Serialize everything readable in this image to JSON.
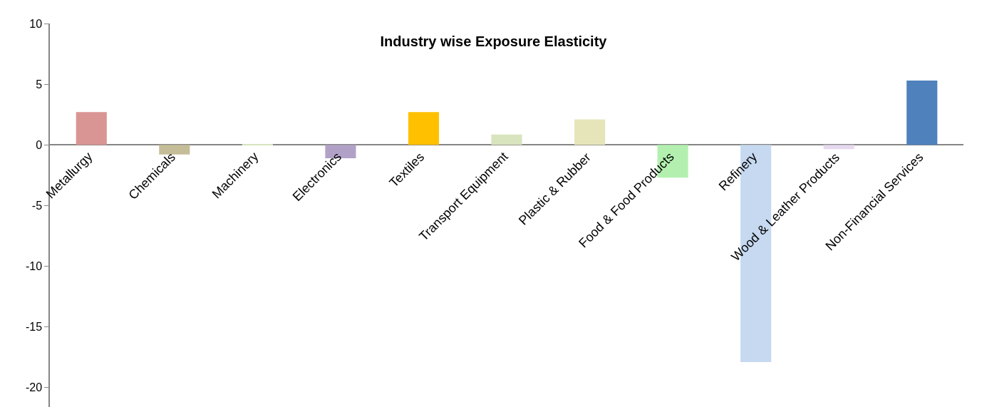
{
  "chart_data": {
    "type": "bar",
    "title": "Industry wise Exposure Elasticity",
    "categories": [
      "Metallurgy",
      "Chemicals",
      "Machinery",
      "Electronics",
      "Textiles",
      "Transport Equipment",
      "Plastic & Rubber",
      "Food & Food Products",
      "Refinery",
      "Wood & Leather Products",
      "Non-Financial Services"
    ],
    "values": [
      2.7,
      -0.8,
      0.05,
      -1.1,
      2.7,
      0.85,
      2.1,
      -2.7,
      -17.9,
      -0.35,
      5.3
    ],
    "colors": [
      "#d99594",
      "#c4bd97",
      "#d7e4bd",
      "#b2a1c7",
      "#ffc000",
      "#d7e4bd",
      "#e5e5b9",
      "#b3f0b0",
      "#c6d9f1",
      "#e6d8ef",
      "#4f81bd"
    ],
    "ylim": [
      -21.6,
      10
    ],
    "yticks": [
      -20,
      -15,
      -10,
      -5,
      0,
      5,
      10
    ],
    "legend": false
  }
}
